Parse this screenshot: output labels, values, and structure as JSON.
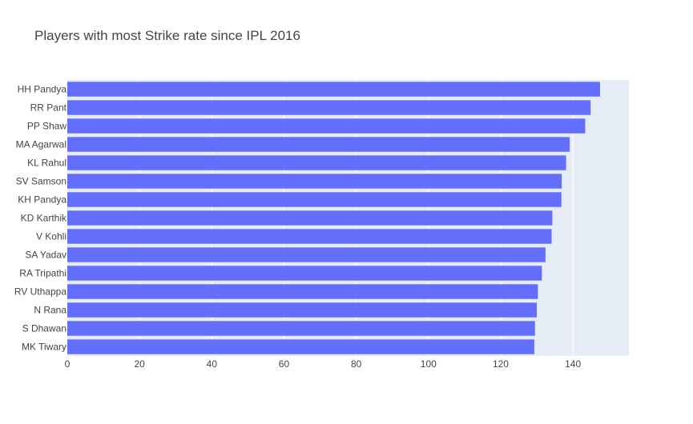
{
  "chart_data": {
    "type": "bar",
    "orientation": "horizontal",
    "title": "Players with most Strike rate since IPL 2016",
    "xlabel": "",
    "ylabel": "",
    "xlim": [
      0,
      155.5
    ],
    "x_ticks": [
      0,
      20,
      40,
      60,
      80,
      100,
      120,
      140
    ],
    "grid": true,
    "categories": [
      "HH Pandya",
      "RR Pant",
      "PP Shaw",
      "MA Agarwal",
      "KL Rahul",
      "SV Samson",
      "KH Pandya",
      "KD Karthik",
      "V Kohli",
      "SA Yadav",
      "RA Tripathi",
      "RV Uthappa",
      "N Rana",
      "S Dhawan",
      "MK Tiwary"
    ],
    "values": [
      147.5,
      144.9,
      143.4,
      139.1,
      138.1,
      136.9,
      136.8,
      134.3,
      134.1,
      132.4,
      131.4,
      130.3,
      130.0,
      129.5,
      129.3
    ],
    "colors": {
      "bar": "#636efa",
      "plot_background": "#e5ecf6",
      "grid": "#ffffff",
      "text": "#444444"
    }
  }
}
